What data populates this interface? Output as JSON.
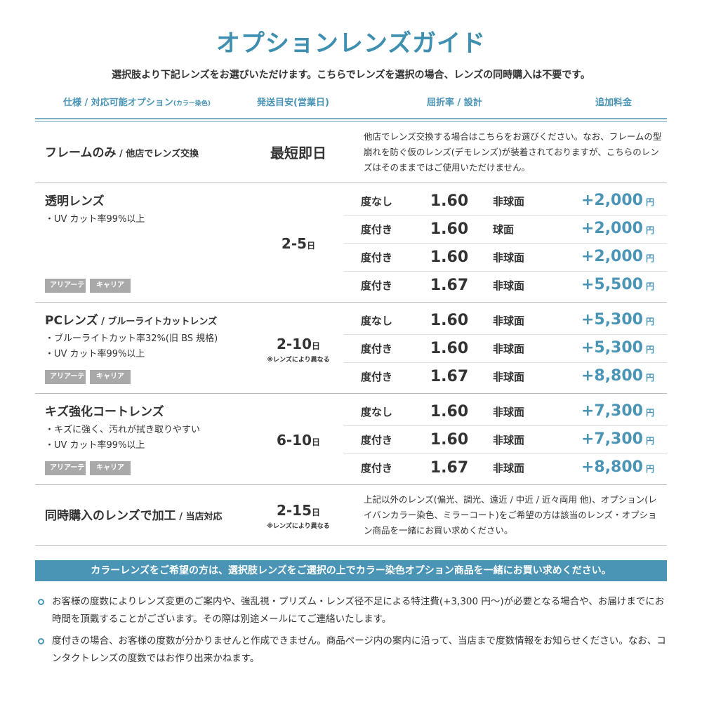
{
  "title": "オプションレンズガイド",
  "subtitle": "選択肢より下記レンズをお選びいただけます。こちらでレンズを選択の場合、レンズの同時購入は不要です。",
  "headers": {
    "spec": "仕様 / 対応可能オプション",
    "spec_small": "(カラー染色)",
    "shipping": "発送目安(営業日)",
    "index": "屈折率 / 設計",
    "price": "追加料金"
  },
  "frame_only": {
    "name": "フレームのみ",
    "name_sub": " / 他店でレンズ交換",
    "days": "最短即日",
    "desc": "他店でレンズ交換する場合はこちらをお選びください。なお、フレームの型崩れを防ぐ仮のレンズ(デモレンズ)が装着されておりますが、こちらのレンズはそのままではご使用いただけません。"
  },
  "sections": [
    {
      "name": "透明レンズ",
      "name_sub": "",
      "features": [
        "・UV カット率99%以上"
      ],
      "tags": [
        "アリアーテ",
        "キャリア"
      ],
      "days": "2-5",
      "days_unit": "日",
      "days_note": "",
      "rows": [
        {
          "type": "度なし",
          "index": "1.60",
          "design": "非球面",
          "price": "+2,000",
          "unit": "円"
        },
        {
          "type": "度付き",
          "index": "1.60",
          "design": "球面",
          "price": "+2,000",
          "unit": "円"
        },
        {
          "type": "度付き",
          "index": "1.60",
          "design": "非球面",
          "price": "+2,000",
          "unit": "円"
        },
        {
          "type": "度付き",
          "index": "1.67",
          "design": "非球面",
          "price": "+5,500",
          "unit": "円"
        }
      ]
    },
    {
      "name": "PCレンズ",
      "name_sub": " / ブルーライトカットレンズ",
      "features": [
        "・ブルーライトカット率32%(旧 BS 規格)",
        "・UV カット率99%以上"
      ],
      "tags": [
        "アリアーテ",
        "キャリア"
      ],
      "days": "2-10",
      "days_unit": "日",
      "days_note": "※レンズにより異なる",
      "rows": [
        {
          "type": "度なし",
          "index": "1.60",
          "design": "非球面",
          "price": "+5,300",
          "unit": "円"
        },
        {
          "type": "度付き",
          "index": "1.60",
          "design": "非球面",
          "price": "+5,300",
          "unit": "円"
        },
        {
          "type": "度付き",
          "index": "1.67",
          "design": "非球面",
          "price": "+8,800",
          "unit": "円"
        }
      ]
    },
    {
      "name": "キズ強化コートレンズ",
      "name_sub": "",
      "features": [
        "・キズに強く、汚れが拭き取りやすい",
        "・UV カット率99%以上"
      ],
      "tags": [
        "アリアーテ",
        "キャリア"
      ],
      "days": "6-10",
      "days_unit": "日",
      "days_note": "",
      "rows": [
        {
          "type": "度なし",
          "index": "1.60",
          "design": "非球面",
          "price": "+7,300",
          "unit": "円"
        },
        {
          "type": "度付き",
          "index": "1.60",
          "design": "非球面",
          "price": "+7,300",
          "unit": "円"
        },
        {
          "type": "度付き",
          "index": "1.67",
          "design": "非球面",
          "price": "+8,800",
          "unit": "円"
        }
      ]
    }
  ],
  "combined": {
    "name": "同時購入のレンズで加工",
    "name_sub": " / 当店対応",
    "days": "2-15",
    "days_unit": "日",
    "days_note": "※レンズにより異なる",
    "desc": "上記以外のレンズ(偏光、調光、遠近 / 中近 / 近々両用 他)、オプション(レイバンカラー染色、ミラーコート)をご希望の方は該当のレンズ・オプション商品を一緒にお買い求めください。"
  },
  "banner": "カラーレンズをご希望の方は、選択肢レンズをご選択の上でカラー染色オプション商品を一緒にお買い求めください。",
  "notes": [
    "お客様の度数によりレンズ変更のご案内や、強乱視・プリズム・レンズ径不足による特注費(+3,300 円〜)が必要となる場合や、お届けまでにお時間を頂戴することがございます。その際は別途メールにてご連絡いたします。",
    "度付きの場合、お客様の度数が分かりませんと作成できません。商品ページ内の案内に沿って、当店まで度数情報をお知らせください。なお、コンタクトレンズの度数ではお作り出来かねます。"
  ],
  "colors": {
    "accent": "#4a95b5",
    "tag": "#a9a9a9"
  }
}
